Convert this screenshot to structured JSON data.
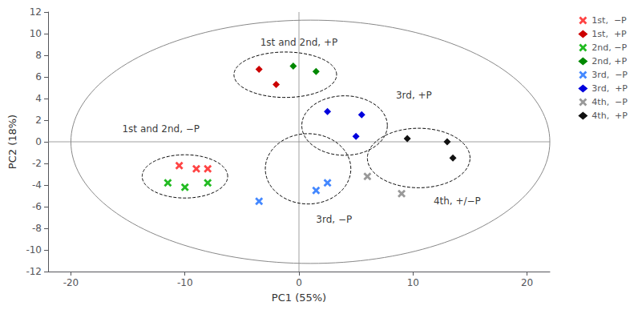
{
  "chart_data": {
    "type": "scatter",
    "xlabel": "PC1 (55%)",
    "ylabel": "PC2 (18%)",
    "xlim": [
      -22,
      22
    ],
    "ylim": [
      -12,
      12
    ],
    "xticks": [
      -20,
      -10,
      0,
      10,
      20
    ],
    "yticks": [
      -12,
      -10,
      -8,
      -6,
      -4,
      -2,
      0,
      2,
      4,
      6,
      8,
      10,
      12
    ],
    "grid": false,
    "legend": "upper right",
    "series": [
      {
        "name": "1st,  −P",
        "color": "#FF4444",
        "marker": "x",
        "x": [
          -10.5,
          -9.0,
          -8.0
        ],
        "values": [
          -2.2,
          -2.5,
          -2.5
        ]
      },
      {
        "name": "1st,  +P",
        "color": "#CC0000",
        "marker": "diamond",
        "x": [
          -3.5,
          -2.0
        ],
        "values": [
          6.7,
          5.3
        ]
      },
      {
        "name": "2nd, −P",
        "color": "#22BB22",
        "marker": "x",
        "x": [
          -11.5,
          -10.0,
          -8.0
        ],
        "values": [
          -3.8,
          -4.2,
          -3.8
        ]
      },
      {
        "name": "2nd, +P",
        "color": "#008800",
        "marker": "diamond",
        "x": [
          -0.5,
          1.5
        ],
        "values": [
          7.0,
          6.5
        ]
      },
      {
        "name": "3rd,  −P",
        "color": "#4488FF",
        "marker": "x",
        "x": [
          -3.5,
          1.5,
          2.5
        ],
        "values": [
          -5.5,
          -4.5,
          -3.8
        ]
      },
      {
        "name": "3rd,  +P",
        "color": "#0000DD",
        "marker": "diamond",
        "x": [
          2.5,
          5.5,
          5.0
        ],
        "values": [
          2.8,
          2.5,
          0.5
        ]
      },
      {
        "name": "4th,  −P",
        "color": "#999999",
        "marker": "x",
        "x": [
          6.0,
          9.0
        ],
        "values": [
          -3.2,
          -4.8
        ]
      },
      {
        "name": "4th,  +P",
        "color": "#111111",
        "marker": "diamond",
        "x": [
          9.5,
          13.0,
          13.5
        ],
        "values": [
          0.3,
          0.0,
          -1.5
        ]
      }
    ],
    "big_ellipse": {
      "cx": 1.0,
      "cy": 0.0,
      "width": 42.0,
      "height": 22.5,
      "angle": 0,
      "color": "#888888",
      "line_style": "solid"
    },
    "cluster_ellipses": {
      "color": "#000000",
      "line_style": "dashed",
      "items": [
        {
          "cx": -1.2,
          "cy": 6.2,
          "width": 9.0,
          "height": 4.2,
          "angle": 0
        },
        {
          "cx": -10.0,
          "cy": -3.2,
          "width": 7.5,
          "height": 4.0,
          "angle": 0
        },
        {
          "cx": 4.0,
          "cy": 1.5,
          "width": 7.5,
          "height": 5.5,
          "angle": 0
        },
        {
          "cx": 0.8,
          "cy": -2.5,
          "width": 7.5,
          "height": 6.5,
          "angle": 0
        },
        {
          "cx": 10.5,
          "cy": -1.5,
          "width": 9.0,
          "height": 5.5,
          "angle": 0
        }
      ]
    },
    "hlines": [
      0
    ],
    "vlines": [
      0
    ],
    "reference_color": "#888888",
    "annotations": [
      {
        "text": "1st and 2nd, +P",
        "x": 0.0,
        "y": 9.2,
        "align": "center"
      },
      {
        "text": "1st and 2nd, −P",
        "x": -15.5,
        "y": 1.2,
        "align": "left"
      },
      {
        "text": "3rd, +P",
        "x": 8.5,
        "y": 4.3,
        "align": "left"
      },
      {
        "text": "3rd, −P",
        "x": 1.5,
        "y": -7.2,
        "align": "left"
      },
      {
        "text": "4th, +/−P",
        "x": 11.8,
        "y": -5.5,
        "align": "left"
      }
    ]
  }
}
